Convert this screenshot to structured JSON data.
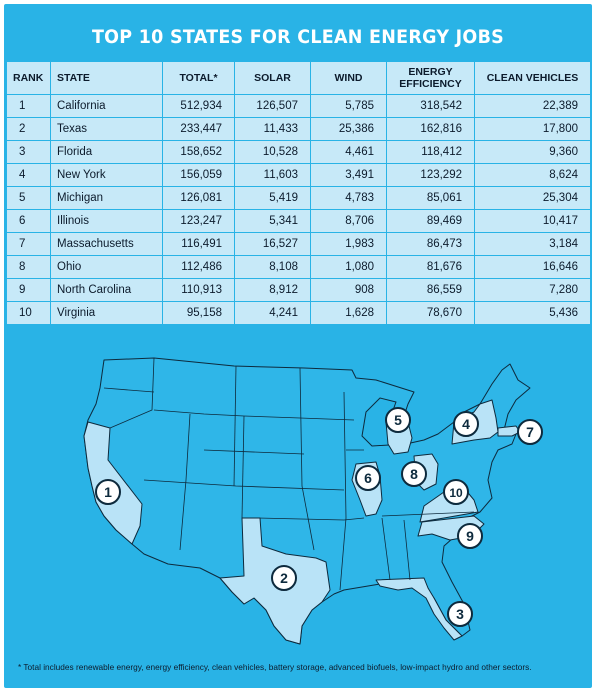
{
  "title": "TOP 10 STATES FOR CLEAN ENERGY JOBS",
  "footnote": "* Total includes renewable energy, energy efficiency, clean vehicles, battery storage, advanced biofuels, low-impact hydro and other sectors.",
  "colors": {
    "background": "#29b3e6",
    "table_fill": "#c7e9f8",
    "map_fill": "#2fb6e8",
    "highlight_fill": "#b9e3f7",
    "state_border": "#0d2a3d"
  },
  "chart_data": {
    "type": "table",
    "title": "TOP 10 STATES FOR CLEAN ENERGY JOBS",
    "columns": [
      "RANK",
      "STATE",
      "TOTAL*",
      "SOLAR",
      "WIND",
      "ENERGY EFFICIENCY",
      "CLEAN VEHICLES"
    ],
    "rows": [
      [
        "1",
        "California",
        "512,934",
        "126,507",
        "5,785",
        "318,542",
        "22,389"
      ],
      [
        "2",
        "Texas",
        "233,447",
        "11,433",
        "25,386",
        "162,816",
        "17,800"
      ],
      [
        "3",
        "Florida",
        "158,652",
        "10,528",
        "4,461",
        "118,412",
        "9,360"
      ],
      [
        "4",
        "New York",
        "156,059",
        "11,603",
        "3,491",
        "123,292",
        "8,624"
      ],
      [
        "5",
        "Michigan",
        "126,081",
        "5,419",
        "4,783",
        "85,061",
        "25,304"
      ],
      [
        "6",
        "Illinois",
        "123,247",
        "5,341",
        "8,706",
        "89,469",
        "10,417"
      ],
      [
        "7",
        "Massachusetts",
        "116,491",
        "16,527",
        "1,983",
        "86,473",
        "3,184"
      ],
      [
        "8",
        "Ohio",
        "112,486",
        "8,108",
        "1,080",
        "81,676",
        "16,646"
      ],
      [
        "9",
        "North Carolina",
        "110,913",
        "8,912",
        "908",
        "86,559",
        "7,280"
      ],
      [
        "10",
        "Virginia",
        "95,158",
        "4,241",
        "1,628",
        "78,670",
        "5,436"
      ]
    ],
    "map_markers": [
      {
        "rank": "1",
        "state": "California"
      },
      {
        "rank": "2",
        "state": "Texas"
      },
      {
        "rank": "3",
        "state": "Florida"
      },
      {
        "rank": "4",
        "state": "New York"
      },
      {
        "rank": "5",
        "state": "Michigan"
      },
      {
        "rank": "6",
        "state": "Illinois"
      },
      {
        "rank": "7",
        "state": "Massachusetts"
      },
      {
        "rank": "8",
        "state": "Ohio"
      },
      {
        "rank": "9",
        "state": "North Carolina"
      },
      {
        "rank": "10",
        "state": "Virginia"
      }
    ]
  }
}
